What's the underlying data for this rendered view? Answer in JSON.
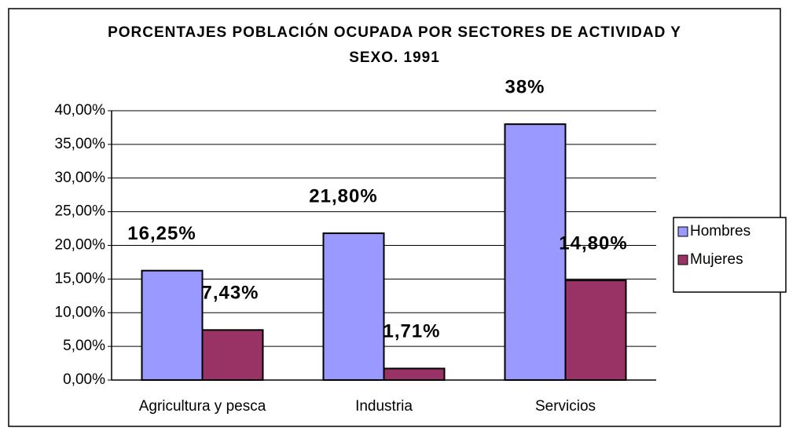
{
  "chart_data": {
    "type": "bar",
    "title": "PORCENTAJES POBLACIÓN OCUPADA POR SECTORES DE ACTIVIDAD Y SEXO. 1991",
    "categories": [
      "Agricultura y pesca",
      "Industria",
      "Servicios"
    ],
    "series": [
      {
        "name": "Hombres",
        "color": "#9999ff",
        "values": [
          16.25,
          21.8,
          38
        ],
        "value_labels": [
          "16,25%",
          "21,80%",
          "38%"
        ]
      },
      {
        "name": "Mujeres",
        "color": "#993366",
        "values": [
          7.43,
          1.71,
          14.8
        ],
        "value_labels": [
          "7,43%",
          "1,71%",
          "14,80%"
        ]
      }
    ],
    "ylim": [
      0,
      40
    ],
    "yticks": [
      {
        "value": 0,
        "label": "0,00%"
      },
      {
        "value": 5,
        "label": "5,00%"
      },
      {
        "value": 10,
        "label": "10,00%"
      },
      {
        "value": 15,
        "label": "15,00%"
      },
      {
        "value": 20,
        "label": "20,00%"
      },
      {
        "value": 25,
        "label": "25,00%"
      },
      {
        "value": 30,
        "label": "30,00%"
      },
      {
        "value": 35,
        "label": "35,00%"
      },
      {
        "value": 40,
        "label": "40,00%"
      }
    ],
    "grid": true,
    "legend": "right"
  }
}
